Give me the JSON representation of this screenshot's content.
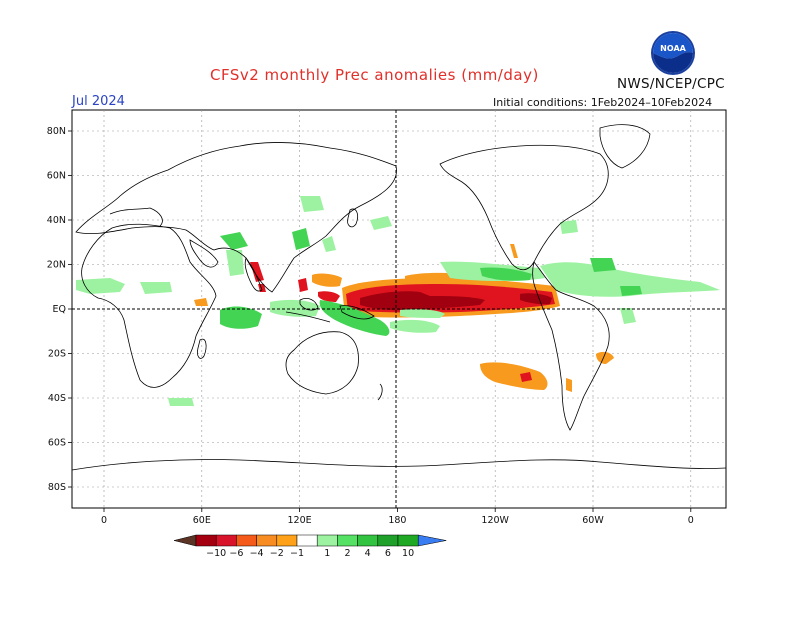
{
  "title": "CFSv2 monthly Prec anomalies (mm/day)",
  "organization": "NWS/NCEP/CPC",
  "logo_text": "NOAA",
  "month": "Jul 2024",
  "initial_conditions": "Initial conditions: 1Feb2024–10Feb2024",
  "lat_labels": [
    "80N",
    "60N",
    "40N",
    "20N",
    "EQ",
    "20S",
    "40S",
    "60S",
    "80S"
  ],
  "lat_values": [
    80,
    60,
    40,
    20,
    0,
    -20,
    -40,
    -60,
    -80
  ],
  "lon_labels": [
    "0",
    "60E",
    "120E",
    "180",
    "120W",
    "60W",
    "0"
  ],
  "lon_values": [
    0,
    60,
    120,
    180,
    240,
    300,
    360
  ],
  "colorbar": {
    "labels": [
      "−10",
      "−6",
      "−4",
      "−2",
      "−1",
      "1",
      "2",
      "4",
      "6",
      "10"
    ],
    "colors": [
      "#5b3425",
      "#a4000f",
      "#d8142a",
      "#f55a1a",
      "#f78c22",
      "#ffa219",
      "#ffffff",
      "#9cf2a0",
      "#55e264",
      "#32c440",
      "#1ea02a",
      "#1fa824",
      "#3a7df2"
    ]
  },
  "colors": {
    "title": "#e0302a",
    "month": "#2a43c4",
    "coast": "#000000",
    "grid": "#888888",
    "orange": "#f79a1e",
    "dark_red": "#a0000f",
    "red": "#e0141e",
    "light_green": "#9cf2a0",
    "green": "#44d454"
  }
}
